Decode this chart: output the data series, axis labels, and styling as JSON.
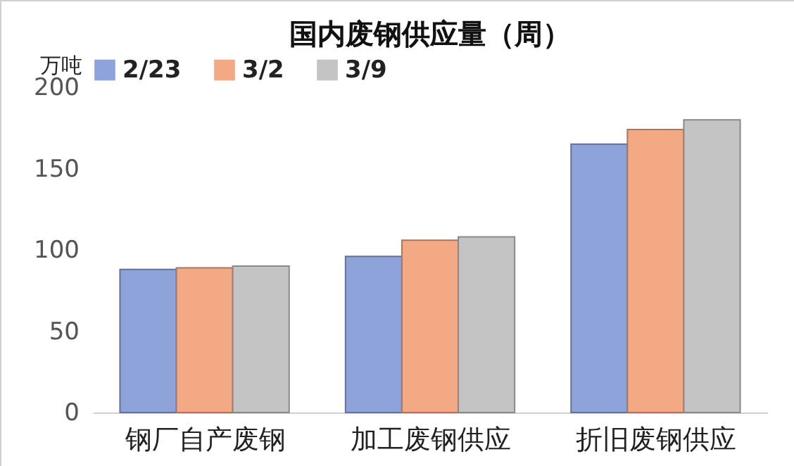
{
  "chart_data": {
    "type": "bar",
    "title": "国内废钢供应量（周）",
    "ylabel": "万吨",
    "categories": [
      "钢厂自产废钢",
      "加工废钢供应",
      "折旧废钢供应"
    ],
    "series": [
      {
        "name": "2/23",
        "color": "#8ea3da",
        "values": [
          88,
          96,
          165
        ]
      },
      {
        "name": "3/2",
        "color": "#f4a985",
        "values": [
          89,
          106,
          174
        ]
      },
      {
        "name": "3/9",
        "color": "#c4c4c4",
        "values": [
          90,
          108,
          180
        ]
      }
    ],
    "ylim": [
      0,
      200
    ],
    "yticks": [
      0,
      50,
      100,
      150,
      200
    ],
    "grid": false,
    "legend": "top"
  }
}
